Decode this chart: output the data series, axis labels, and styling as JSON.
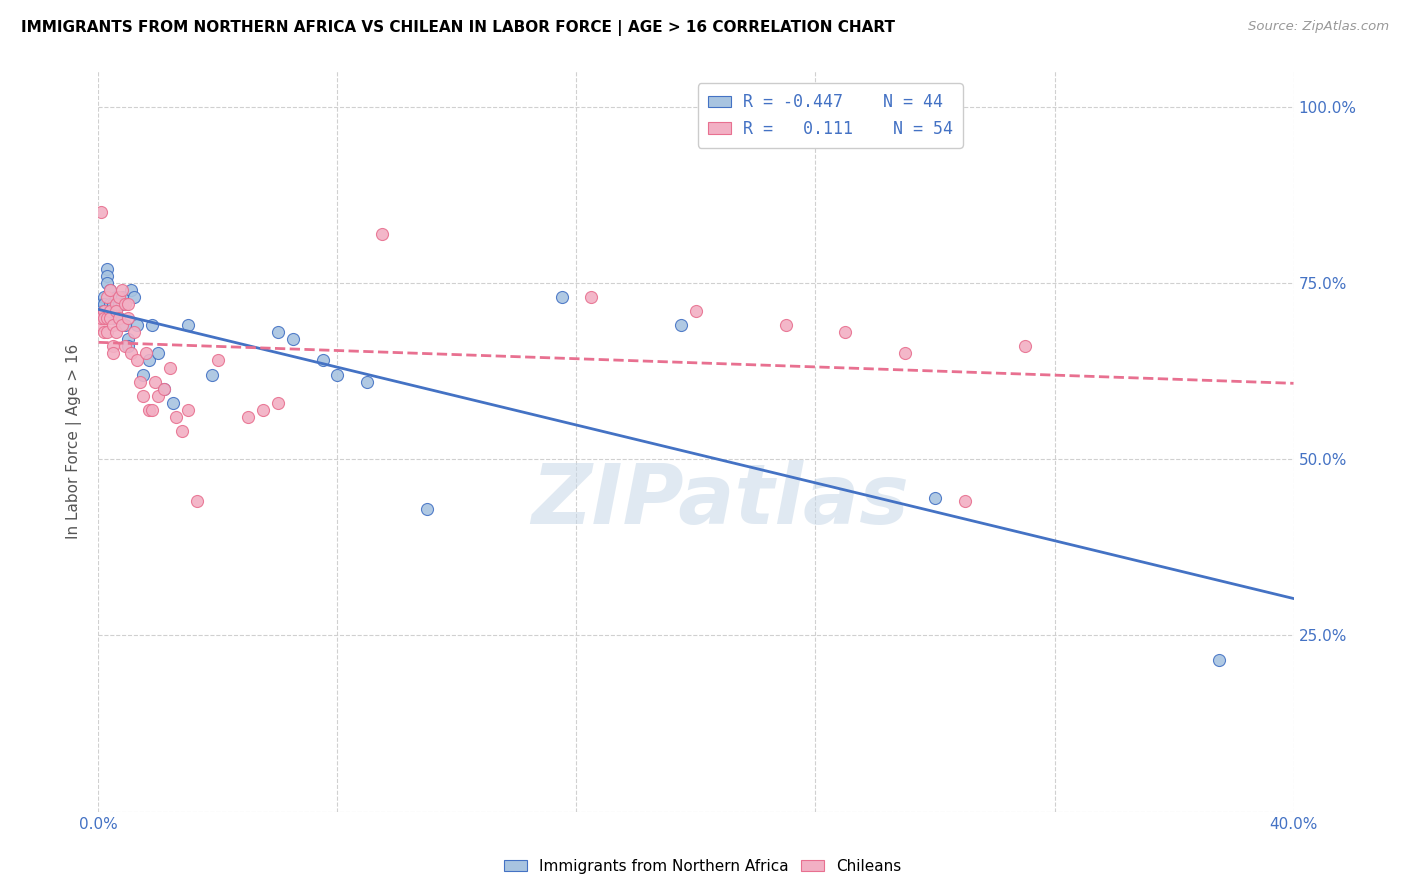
{
  "title": "IMMIGRANTS FROM NORTHERN AFRICA VS CHILEAN IN LABOR FORCE | AGE > 16 CORRELATION CHART",
  "source": "Source: ZipAtlas.com",
  "ylabel": "In Labor Force | Age > 16",
  "xlim": [
    0.0,
    0.4
  ],
  "ylim": [
    0.0,
    1.05
  ],
  "blue_R": -0.447,
  "blue_N": 44,
  "pink_R": 0.111,
  "pink_N": 54,
  "blue_color": "#a8c4e0",
  "pink_color": "#f2b0c4",
  "blue_line_color": "#4472c4",
  "pink_line_color": "#e87090",
  "grid_color": "#d0d0d0",
  "watermark": "ZIPatlas",
  "blue_x": [
    0.001,
    0.001,
    0.002,
    0.002,
    0.002,
    0.003,
    0.003,
    0.003,
    0.004,
    0.004,
    0.004,
    0.005,
    0.005,
    0.005,
    0.006,
    0.006,
    0.007,
    0.007,
    0.008,
    0.008,
    0.009,
    0.01,
    0.01,
    0.011,
    0.012,
    0.013,
    0.015,
    0.017,
    0.018,
    0.02,
    0.022,
    0.025,
    0.03,
    0.038,
    0.06,
    0.065,
    0.075,
    0.08,
    0.09,
    0.11,
    0.155,
    0.195,
    0.28,
    0.375
  ],
  "blue_y": [
    0.72,
    0.71,
    0.73,
    0.72,
    0.71,
    0.77,
    0.76,
    0.75,
    0.74,
    0.72,
    0.71,
    0.72,
    0.71,
    0.7,
    0.73,
    0.71,
    0.72,
    0.7,
    0.73,
    0.72,
    0.69,
    0.67,
    0.66,
    0.74,
    0.73,
    0.69,
    0.62,
    0.64,
    0.69,
    0.65,
    0.6,
    0.58,
    0.69,
    0.62,
    0.68,
    0.67,
    0.64,
    0.62,
    0.61,
    0.43,
    0.73,
    0.69,
    0.445,
    0.215
  ],
  "pink_x": [
    0.001,
    0.001,
    0.001,
    0.002,
    0.002,
    0.002,
    0.003,
    0.003,
    0.003,
    0.004,
    0.004,
    0.004,
    0.005,
    0.005,
    0.005,
    0.006,
    0.006,
    0.006,
    0.007,
    0.007,
    0.008,
    0.008,
    0.009,
    0.009,
    0.01,
    0.01,
    0.011,
    0.012,
    0.013,
    0.014,
    0.015,
    0.016,
    0.017,
    0.018,
    0.019,
    0.02,
    0.022,
    0.024,
    0.026,
    0.028,
    0.03,
    0.033,
    0.04,
    0.05,
    0.055,
    0.06,
    0.095,
    0.165,
    0.2,
    0.23,
    0.25,
    0.27,
    0.29,
    0.31
  ],
  "pink_y": [
    0.69,
    0.7,
    0.85,
    0.71,
    0.7,
    0.68,
    0.73,
    0.7,
    0.68,
    0.74,
    0.71,
    0.7,
    0.69,
    0.66,
    0.65,
    0.72,
    0.71,
    0.68,
    0.73,
    0.7,
    0.74,
    0.69,
    0.72,
    0.66,
    0.72,
    0.7,
    0.65,
    0.68,
    0.64,
    0.61,
    0.59,
    0.65,
    0.57,
    0.57,
    0.61,
    0.59,
    0.6,
    0.63,
    0.56,
    0.54,
    0.57,
    0.44,
    0.64,
    0.56,
    0.57,
    0.58,
    0.82,
    0.73,
    0.71,
    0.69,
    0.68,
    0.65,
    0.44,
    0.66
  ]
}
